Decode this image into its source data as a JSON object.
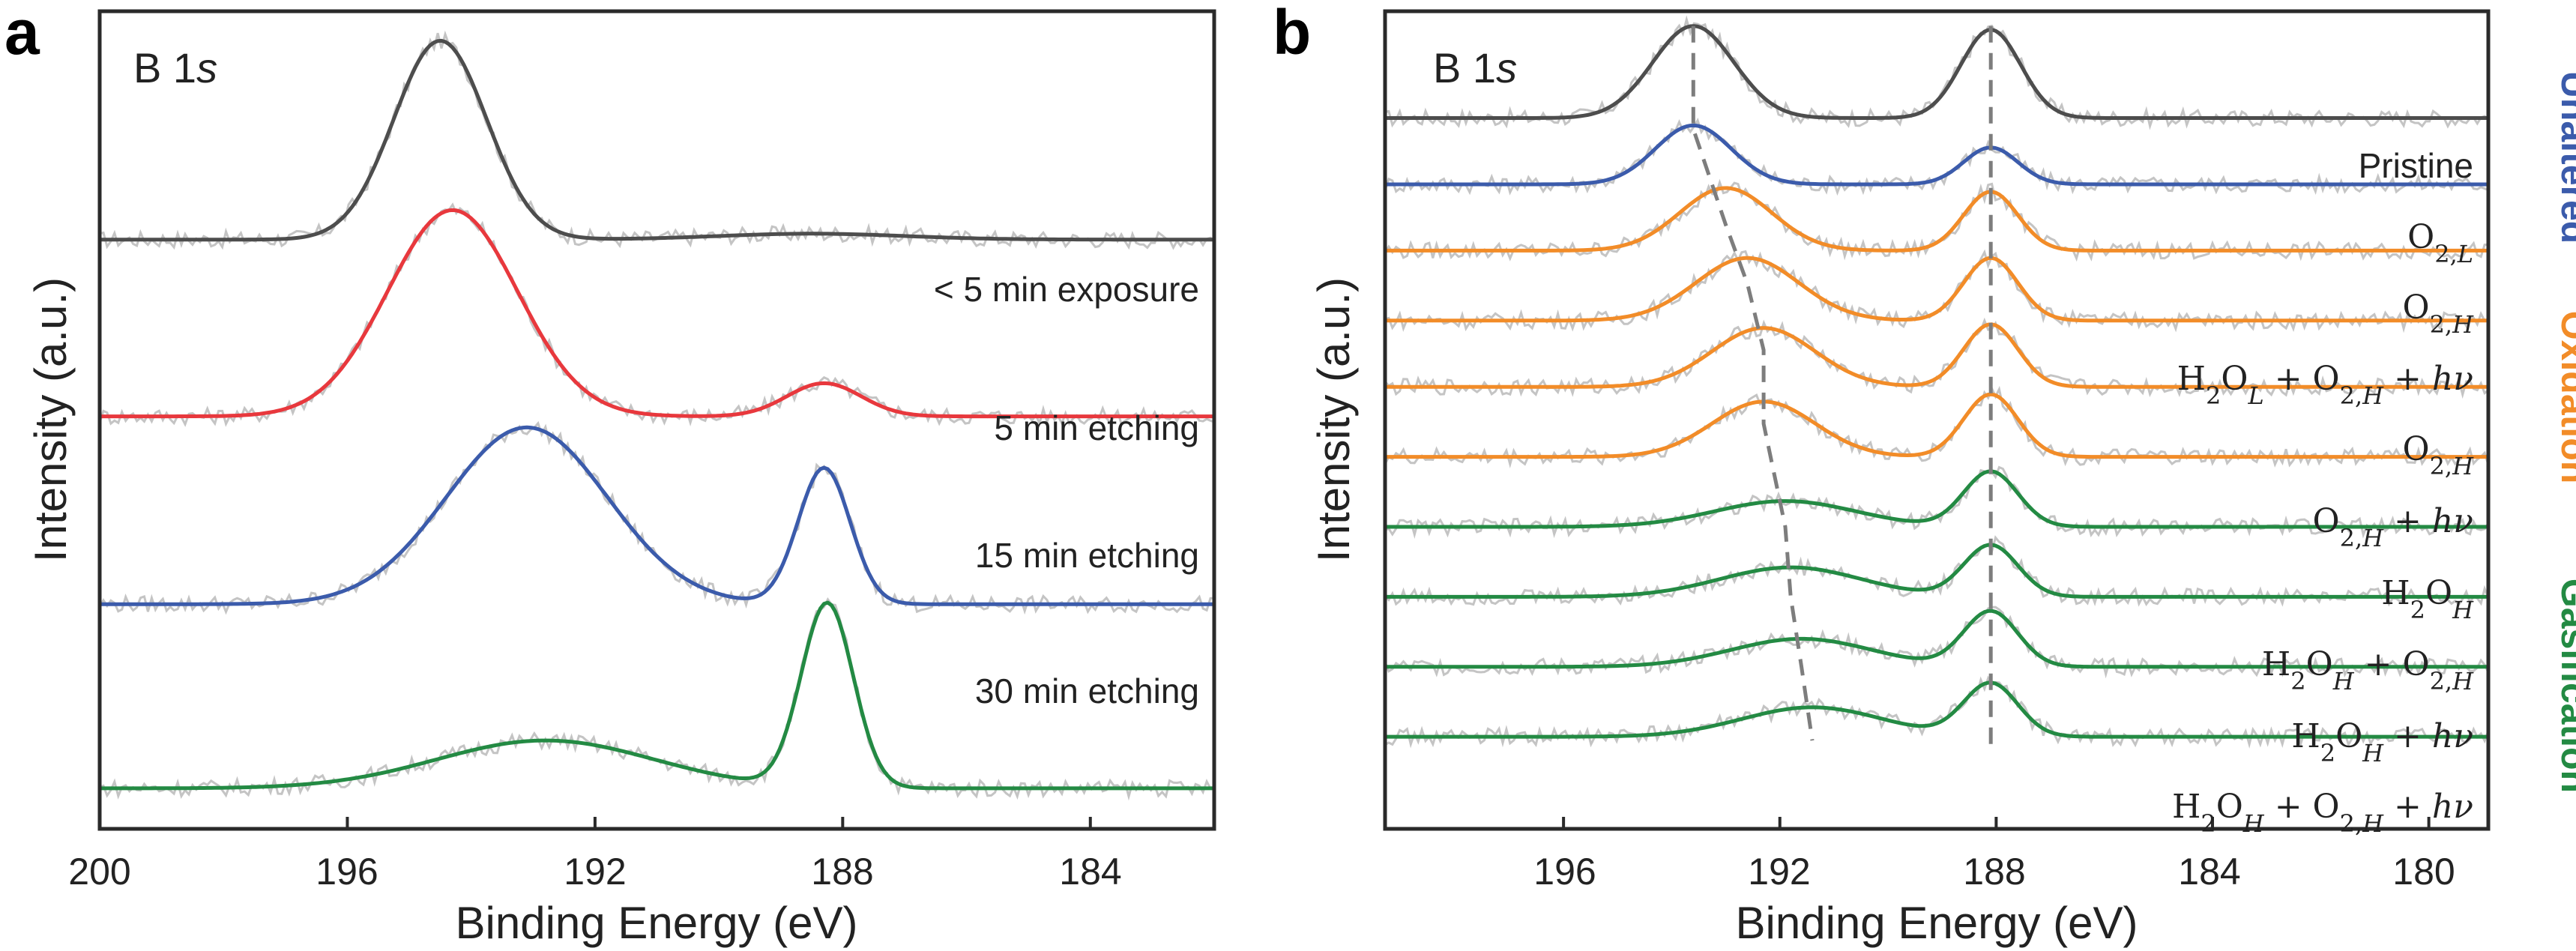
{
  "figure_labels": {
    "a": "a",
    "b": "b"
  },
  "colors": {
    "gray": "#4d4d4d",
    "red": "#e8383d",
    "blue": "#3b5bab",
    "orange": "#f28c28",
    "green": "#238a43",
    "raw": "#c4c4c4",
    "guide": "#7d7d7d"
  },
  "chart_data": [
    {
      "id": "a",
      "type": "line",
      "inset_label": "B 1s",
      "xlabel": "Binding Energy (eV)",
      "ylabel": "Intensity (a.u.)",
      "xlim": [
        200,
        182
      ],
      "x_ticks": [
        "200",
        "196",
        "192",
        "188",
        "184"
      ],
      "y_range": [
        -0.3,
        10.8
      ],
      "grid": false,
      "series": [
        {
          "name": "< 5 min exposure",
          "color_key": "gray",
          "baseline": 7.7,
          "peaks": [
            {
              "center": 194.5,
              "width": 0.75,
              "height": 2.7
            },
            {
              "center": 188.5,
              "width": 1.5,
              "height": 0.08
            }
          ]
        },
        {
          "name": "5 min etching",
          "color_key": "red",
          "baseline": 5.3,
          "peaks": [
            {
              "center": 194.3,
              "width": 1.05,
              "height": 2.8
            },
            {
              "center": 188.3,
              "width": 0.6,
              "height": 0.45
            }
          ]
        },
        {
          "name": "15 min etching",
          "color_key": "blue",
          "baseline": 2.75,
          "peaks": [
            {
              "center": 193.1,
              "width": 1.3,
              "height": 2.4
            },
            {
              "center": 188.3,
              "width": 0.42,
              "height": 1.85
            }
          ]
        },
        {
          "name": "30 min etching",
          "color_key": "green",
          "baseline": 0.25,
          "peaks": [
            {
              "center": 192.8,
              "width": 1.75,
              "height": 0.65
            },
            {
              "center": 188.25,
              "width": 0.42,
              "height": 2.5
            }
          ]
        }
      ]
    },
    {
      "id": "b",
      "type": "line",
      "inset_label": "B 1s",
      "xlabel": "Binding Energy (eV)",
      "ylabel": "Intensity (a.u.)",
      "xlim": [
        199.3,
        178.9
      ],
      "x_ticks": [
        "196",
        "192",
        "188",
        "184",
        "180"
      ],
      "y_range": [
        -0.3,
        10.8
      ],
      "grid": false,
      "group_labels": [
        {
          "text": "Unaltered",
          "color_key": "blue"
        },
        {
          "text": "Oxidation",
          "color_key": "orange"
        },
        {
          "text": "Gasification",
          "color_key": "green"
        }
      ],
      "series": [
        {
          "name": "Pristine",
          "color_key": "gray",
          "baseline": 9.35,
          "peaks": [
            {
              "center": 193.6,
              "width": 0.75,
              "height": 1.25
            },
            {
              "center": 188.1,
              "width": 0.55,
              "height": 1.2
            }
          ]
        },
        {
          "name": "O2,L",
          "color_key": "blue",
          "baseline": 8.45,
          "peaks": [
            {
              "center": 193.6,
              "width": 0.7,
              "height": 0.8
            },
            {
              "center": 188.1,
              "width": 0.5,
              "height": 0.5
            }
          ]
        },
        {
          "name": "O2,H",
          "color_key": "orange",
          "baseline": 7.55,
          "peaks": [
            {
              "center": 193.0,
              "width": 0.85,
              "height": 0.85
            },
            {
              "center": 188.1,
              "width": 0.5,
              "height": 0.8
            }
          ]
        },
        {
          "name": "H2OL + O2,H + hv",
          "color_key": "orange",
          "baseline": 6.6,
          "peaks": [
            {
              "center": 192.6,
              "width": 0.95,
              "height": 0.85
            },
            {
              "center": 188.1,
              "width": 0.5,
              "height": 0.85
            }
          ]
        },
        {
          "name": "O2,H",
          "color_key": "orange",
          "baseline": 5.7,
          "peaks": [
            {
              "center": 192.3,
              "width": 0.95,
              "height": 0.8
            },
            {
              "center": 188.1,
              "width": 0.5,
              "height": 0.85
            }
          ]
        },
        {
          "name": "O2,H + hv",
          "color_key": "orange",
          "baseline": 4.75,
          "peaks": [
            {
              "center": 192.3,
              "width": 0.95,
              "height": 0.75
            },
            {
              "center": 188.1,
              "width": 0.5,
              "height": 0.85
            }
          ]
        },
        {
          "name": "H2OH",
          "color_key": "green",
          "baseline": 3.8,
          "peaks": [
            {
              "center": 191.9,
              "width": 1.3,
              "height": 0.35
            },
            {
              "center": 188.1,
              "width": 0.5,
              "height": 0.75
            }
          ]
        },
        {
          "name": "H2OH + O2,H",
          "color_key": "green",
          "baseline": 2.85,
          "peaks": [
            {
              "center": 191.8,
              "width": 1.3,
              "height": 0.4
            },
            {
              "center": 188.1,
              "width": 0.5,
              "height": 0.7
            }
          ]
        },
        {
          "name": "H2OH + hv",
          "color_key": "green",
          "baseline": 1.9,
          "peaks": [
            {
              "center": 191.6,
              "width": 1.3,
              "height": 0.38
            },
            {
              "center": 188.1,
              "width": 0.5,
              "height": 0.75
            }
          ]
        },
        {
          "name": "H2OH + O2,H + hv",
          "color_key": "green",
          "baseline": 0.95,
          "peaks": [
            {
              "center": 191.4,
              "width": 1.3,
              "height": 0.4
            },
            {
              "center": 188.1,
              "width": 0.5,
              "height": 0.72
            }
          ]
        }
      ],
      "guide_lines": [
        {
          "name": "shifting peak",
          "points": [
            [
              193.6,
              10.6
            ],
            [
              193.6,
              9.2
            ],
            [
              193.0,
              7.9
            ],
            [
              192.6,
              7.1
            ],
            [
              192.3,
              6.2
            ],
            [
              192.3,
              5.2
            ],
            [
              191.9,
              3.8
            ],
            [
              191.8,
              2.85
            ],
            [
              191.6,
              1.9
            ],
            [
              191.4,
              0.9
            ]
          ]
        },
        {
          "name": "fixed peak",
          "points": [
            [
              188.1,
              10.6
            ],
            [
              188.1,
              0.85
            ]
          ]
        }
      ]
    }
  ]
}
